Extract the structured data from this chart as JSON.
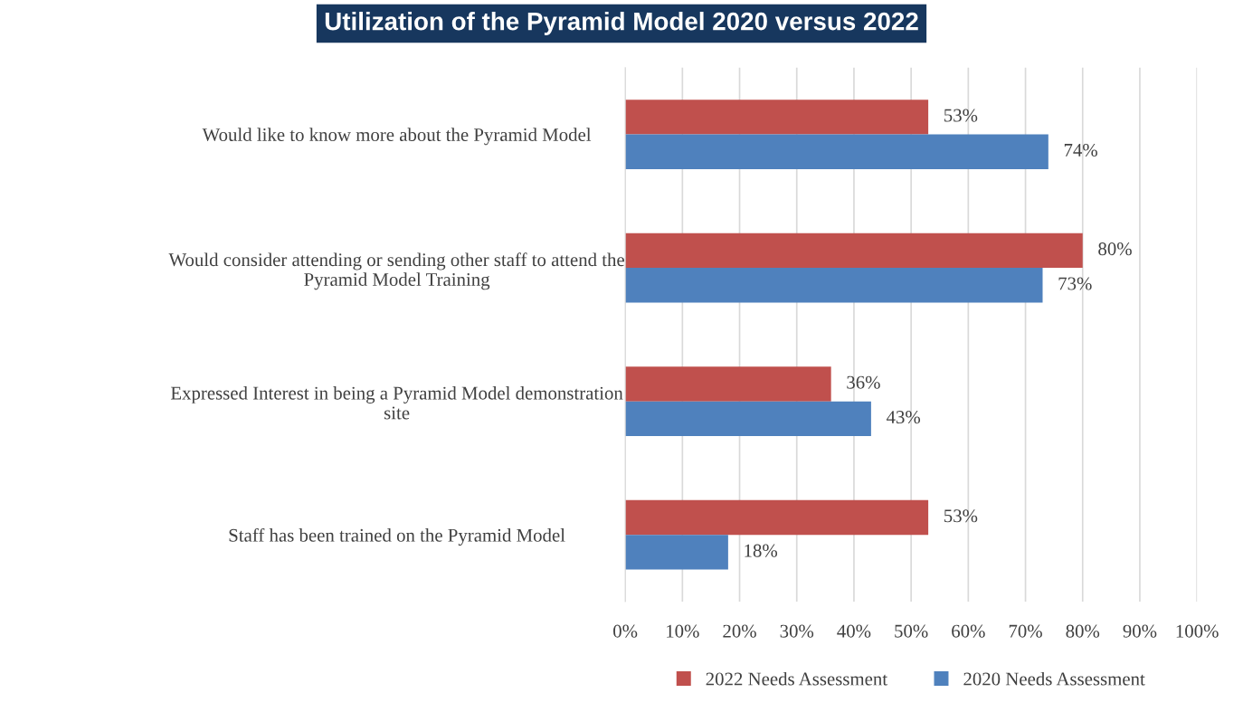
{
  "chart_data": {
    "type": "bar",
    "orientation": "horizontal",
    "title": "Utilization of the Pyramid Model 2020 versus 2022",
    "categories": [
      "Would like to know more about the Pyramid Model",
      "Would consider attending or sending other staff to attend the\nPyramid Model Training",
      "Expressed Interest in being a Pyramid Model demonstration\nsite",
      "Staff has been trained on the Pyramid Model"
    ],
    "series": [
      {
        "name": "2022 Needs Assessment",
        "color": "#c0504d",
        "values": [
          53,
          80,
          36,
          53
        ],
        "value_labels": [
          "53%",
          "80%",
          "36%",
          "53%"
        ]
      },
      {
        "name": "2020 Needs Assessment",
        "color": "#4f81bd",
        "values": [
          74,
          73,
          43,
          18
        ],
        "value_labels": [
          "74%",
          "73%",
          "43%",
          "18%"
        ]
      }
    ],
    "xlim": [
      0,
      100
    ],
    "xticks": [
      {
        "value": 0,
        "label": "0%"
      },
      {
        "value": 10,
        "label": "10%"
      },
      {
        "value": 20,
        "label": "20%"
      },
      {
        "value": 30,
        "label": "30%"
      },
      {
        "value": 40,
        "label": "40%"
      },
      {
        "value": 50,
        "label": "50%"
      },
      {
        "value": 60,
        "label": "60%"
      },
      {
        "value": 70,
        "label": "70%"
      },
      {
        "value": 80,
        "label": "80%"
      },
      {
        "value": 90,
        "label": "90%"
      },
      {
        "value": 100,
        "label": "100%"
      }
    ],
    "grid": "x",
    "legend": "bottom"
  }
}
